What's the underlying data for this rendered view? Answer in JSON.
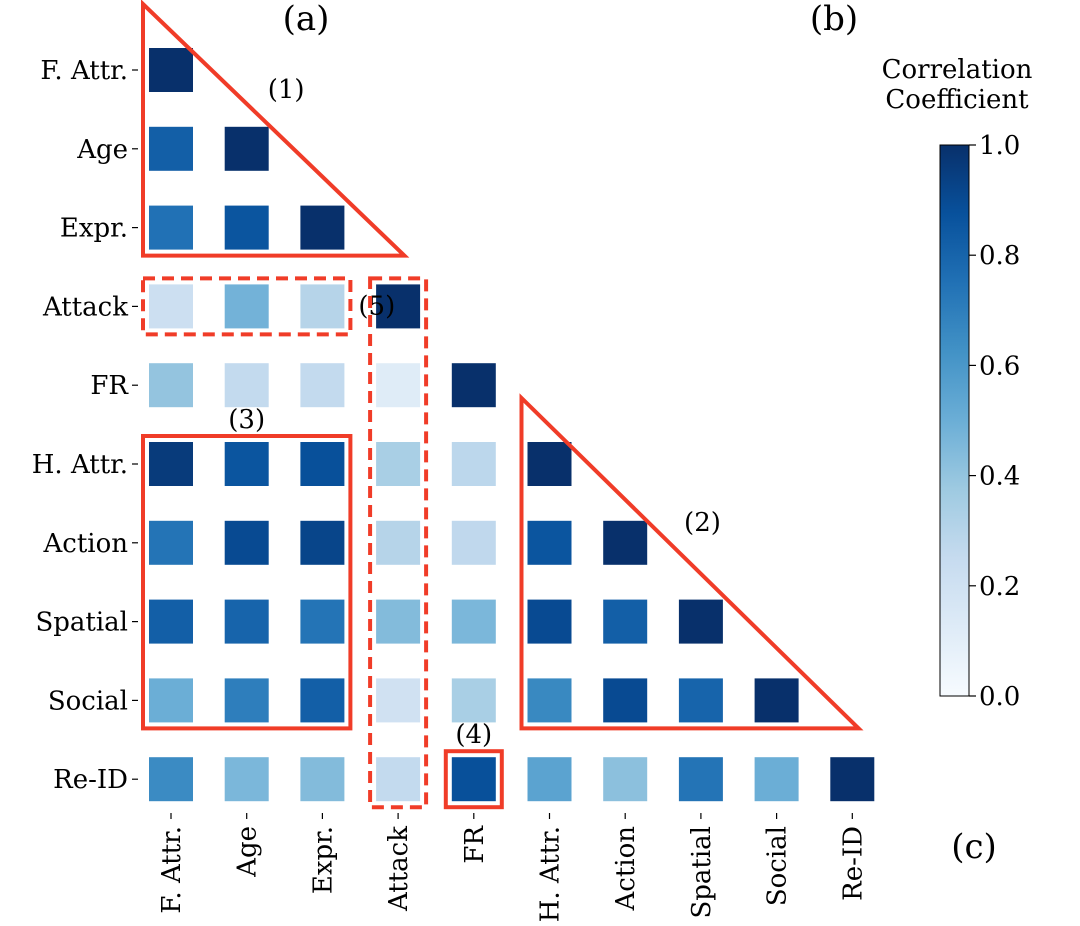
{
  "chart_data": {
    "type": "heatmap",
    "shape": "lower-triangular",
    "row_labels": [
      "F. Attr.",
      "Age",
      "Expr.",
      "Attack",
      "FR",
      "H. Attr.",
      "Action",
      "Spatial",
      "Social",
      "Re-ID"
    ],
    "col_labels": [
      "F. Attr.",
      "Age",
      "Expr.",
      "Attack",
      "FR",
      "H. Attr.",
      "Action",
      "Spatial",
      "Social",
      "Re-ID"
    ],
    "values": [
      [
        1.0
      ],
      [
        0.82,
        1.0
      ],
      [
        0.75,
        0.86,
        1.0
      ],
      [
        0.22,
        0.48,
        0.3,
        1.0
      ],
      [
        0.4,
        0.26,
        0.26,
        0.12,
        1.0
      ],
      [
        0.96,
        0.86,
        0.88,
        0.34,
        0.28,
        1.0
      ],
      [
        0.74,
        0.9,
        0.92,
        0.3,
        0.27,
        0.86,
        1.0
      ],
      [
        0.82,
        0.8,
        0.74,
        0.44,
        0.46,
        0.9,
        0.82,
        1.0
      ],
      [
        0.5,
        0.7,
        0.82,
        0.2,
        0.34,
        0.66,
        0.9,
        0.8,
        1.0
      ],
      [
        0.65,
        0.46,
        0.44,
        0.26,
        0.88,
        0.55,
        0.42,
        0.74,
        0.5,
        1.0
      ]
    ],
    "colorbar": {
      "title_lines": [
        "Correlation",
        "Coefficient"
      ],
      "range": [
        0.0,
        1.0
      ],
      "ticks": [
        "0.0",
        "0.2",
        "0.4",
        "0.6",
        "0.8",
        "1.0"
      ],
      "colormap": "Blues"
    },
    "panel_labels": [
      "(a)",
      "(b)",
      "(c)"
    ],
    "annotations": [
      {
        "label": "(1)",
        "shape": "triangle",
        "style": "solid",
        "color": "#f03c28",
        "rows": [
          0,
          2
        ],
        "cols": [
          0,
          2
        ]
      },
      {
        "label": "(2)",
        "shape": "triangle",
        "style": "solid",
        "color": "#f03c28",
        "rows": [
          5,
          8
        ],
        "cols": [
          5,
          8
        ]
      },
      {
        "label": "(3)",
        "shape": "rectangle",
        "style": "solid",
        "color": "#f03c28",
        "rows": [
          5,
          8
        ],
        "cols": [
          0,
          2
        ]
      },
      {
        "label": "(4)",
        "shape": "rectangle",
        "style": "solid",
        "color": "#f03c28",
        "rows": [
          9,
          9
        ],
        "cols": [
          4,
          4
        ]
      },
      {
        "label": "(5)",
        "shape": "rectangle",
        "style": "dashed",
        "color": "#f03c28",
        "rows": [
          3,
          3
        ],
        "cols": [
          0,
          2
        ]
      },
      {
        "label": "",
        "shape": "rectangle",
        "style": "dashed",
        "color": "#f03c28",
        "rows": [
          3,
          9
        ],
        "cols": [
          3,
          3
        ]
      }
    ]
  }
}
